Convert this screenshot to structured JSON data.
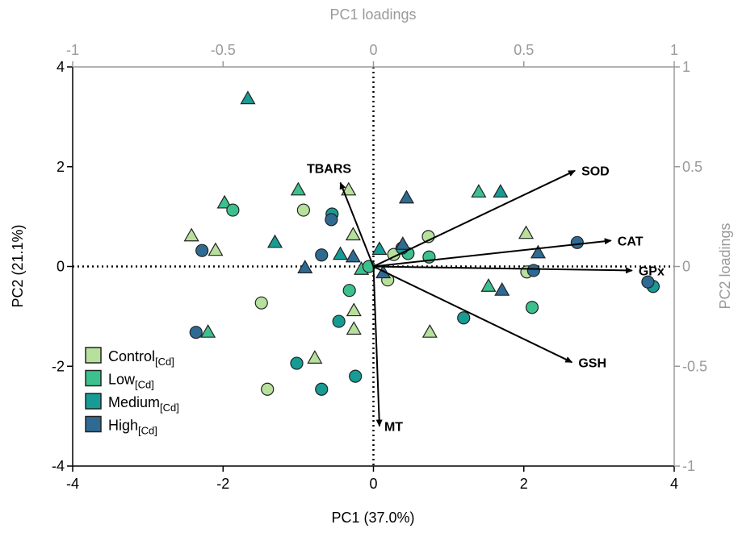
{
  "chart_data": {
    "type": "scatter",
    "xlabel": "PC1 (37.0%)",
    "ylabel": "PC2 (21.1%)",
    "x2label": "PC1 loadings",
    "y2label": "PC2 loadings",
    "xlim": [
      -4,
      4
    ],
    "ylim": [
      -4,
      4
    ],
    "xticks": [
      -4,
      -2,
      0,
      2,
      4
    ],
    "yticks": [
      -4,
      -2,
      0,
      2,
      4
    ],
    "x2lim": [
      -1,
      1
    ],
    "y2lim": [
      -1,
      1
    ],
    "x2ticks": [
      -1,
      -0.5,
      0,
      0.5,
      1
    ],
    "y2ticks": [
      -1,
      -0.5,
      0,
      0.5,
      1
    ],
    "series": [
      {
        "name": "Control",
        "name_sub": "[Cd]",
        "color": "#b7e09c",
        "x": [
          -0.93,
          -0.33,
          -2.42,
          -2.1,
          -1.49,
          -1.41,
          -0.78,
          -0.26,
          -0.26,
          -0.27,
          0.73,
          0.27,
          0.19,
          0.75,
          2.03,
          2.04
        ],
        "y": [
          1.13,
          1.53,
          0.61,
          0.32,
          -0.73,
          -2.46,
          -1.84,
          -1.26,
          -0.89,
          0.63,
          0.6,
          0.24,
          -0.27,
          -1.32,
          0.66,
          -0.11
        ],
        "markers": [
          "circle",
          "triangle",
          "triangle",
          "triangle",
          "circle",
          "circle",
          "triangle",
          "triangle",
          "triangle",
          "triangle",
          "circle",
          "circle",
          "circle",
          "triangle",
          "triangle",
          "circle"
        ]
      },
      {
        "name": "Low",
        "name_sub": "[Cd]",
        "color": "#3cc18e",
        "x": [
          -1.98,
          -1.87,
          -0.32,
          -0.16,
          -0.06,
          -2.2,
          -1.0,
          1.4,
          1.53,
          2.11,
          0.74,
          0.46
        ],
        "y": [
          1.27,
          1.13,
          -0.48,
          -0.06,
          0.0,
          -1.32,
          1.53,
          1.49,
          -0.4,
          -0.82,
          0.19,
          0.26
        ],
        "markers": [
          "triangle",
          "circle",
          "circle",
          "triangle",
          "circle",
          "triangle",
          "triangle",
          "triangle",
          "triangle",
          "circle",
          "circle",
          "circle"
        ]
      },
      {
        "name": "Medium",
        "name_sub": "[Cd]",
        "color": "#169c94",
        "x": [
          -1.67,
          -1.31,
          -0.55,
          -0.46,
          -0.24,
          -0.69,
          -1.02,
          0.08,
          1.2,
          3.72,
          1.69,
          0.38,
          -0.44
        ],
        "y": [
          3.36,
          0.48,
          1.05,
          -1.1,
          -2.2,
          -2.46,
          -1.94,
          0.34,
          -1.03,
          -0.4,
          1.49,
          0.37,
          0.24
        ],
        "markers": [
          "triangle",
          "triangle",
          "circle",
          "circle",
          "circle",
          "circle",
          "circle",
          "triangle",
          "circle",
          "circle",
          "triangle",
          "circle",
          "triangle"
        ]
      },
      {
        "name": "High",
        "name_sub": "[Cd]",
        "color": "#2f6a93",
        "x": [
          -2.28,
          -2.36,
          -0.56,
          -0.69,
          -0.91,
          -0.27,
          0.44,
          0.39,
          2.71,
          2.19,
          1.71,
          3.65,
          2.13,
          0.13
        ],
        "y": [
          0.32,
          -1.32,
          0.94,
          0.23,
          -0.03,
          0.19,
          1.37,
          0.44,
          0.48,
          0.27,
          -0.48,
          -0.31,
          -0.08,
          -0.13
        ],
        "markers": [
          "circle",
          "circle",
          "circle",
          "circle",
          "triangle",
          "triangle",
          "triangle",
          "triangle",
          "circle",
          "triangle",
          "triangle",
          "circle",
          "circle",
          "triangle"
        ]
      }
    ],
    "loadings": {
      "labels": [
        "SOD",
        "CAT",
        "GPx",
        "GSH",
        "MT",
        "TBARS"
      ],
      "x": [
        0.67,
        0.79,
        0.86,
        0.66,
        0.02,
        -0.11
      ],
      "y": [
        0.48,
        0.13,
        -0.02,
        -0.48,
        -0.8,
        0.42
      ],
      "color": "#000000"
    },
    "axis2_color": "#9a9a9a"
  }
}
